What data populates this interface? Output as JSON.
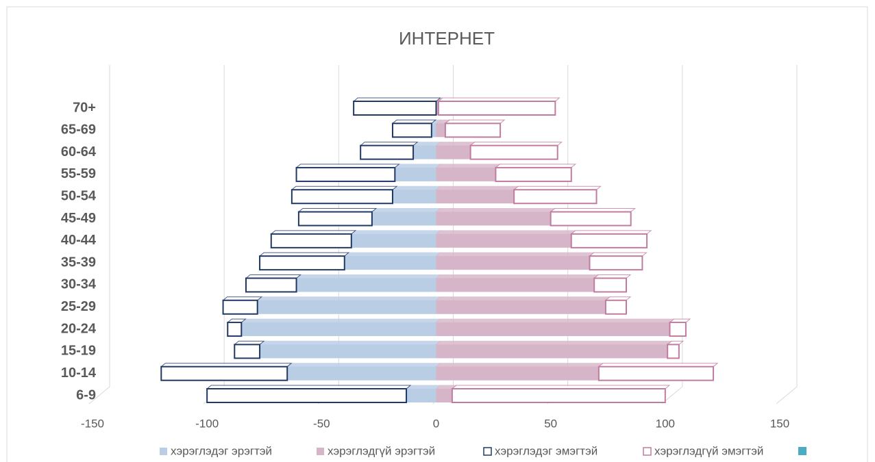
{
  "chart_data": {
    "type": "bar",
    "orientation": "horizontal",
    "stacked": true,
    "title": "ИНТЕРНЕТ",
    "categories": [
      "6-9",
      "10-14",
      "15-19",
      "20-24",
      "25-29",
      "30-34",
      "35-39",
      "40-44",
      "45-49",
      "50-54",
      "55-59",
      "60-64",
      "65-69",
      "70+"
    ],
    "series": [
      {
        "name": "хэрэглэдэг эрэгтэй",
        "color": "#b9cde5",
        "fill": true,
        "values": [
          -13,
          -65,
          -77,
          -85,
          -78,
          -61,
          -40,
          -37,
          -28,
          -19,
          -18,
          -10,
          -2,
          0
        ]
      },
      {
        "name": "хэрэглэдгүй эрэгтэй",
        "color": "#d7b5c8",
        "fill": true,
        "values": [
          7,
          71,
          101,
          102,
          74,
          69,
          67,
          59,
          50,
          34,
          26,
          15,
          4,
          1
        ]
      },
      {
        "name": "хэрэглэдэг эмэгтэй",
        "color": "#1f3864",
        "fill": false,
        "values": [
          -87,
          -55,
          -11,
          -6,
          -15,
          -22,
          -37,
          -35,
          -32,
          -44,
          -43,
          -23,
          -17,
          -36
        ]
      },
      {
        "name": "хэрэглэдгүй эмэгтэй",
        "color": "#c27ba0",
        "fill": false,
        "values": [
          93,
          50,
          5,
          7,
          9,
          14,
          23,
          33,
          35,
          36,
          33,
          38,
          24,
          51
        ]
      }
    ],
    "xlim": [
      -150,
      150
    ],
    "xticks": [
      -150,
      -100,
      -50,
      0,
      50,
      100,
      150
    ],
    "grid": true
  }
}
